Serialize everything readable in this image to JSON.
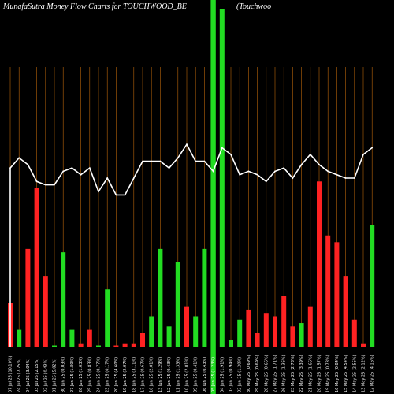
{
  "header": {
    "title_left": "MunafaSutra  Money Flow  Charts for TOUCHWOOD_BE",
    "title_right": "(Touchwoo"
  },
  "chart_data": {
    "type": "bar",
    "title": "MunafaSutra  Money Flow  Charts for TOUCHWOOD_BE",
    "ylim": [
      0,
      100
    ],
    "colors": {
      "up": "#22dd22",
      "down": "#ff2222",
      "grid": "#b8640a",
      "line": "#ffffff",
      "highlight": "#22dd22"
    },
    "highlight_index": 23,
    "categories": [
      "07 Jul 25 (10.10%)",
      "24 Jul 25 (7.75%)",
      "04 Jul 25 (3.04%)",
      "03 Jul 25 (2.15%)",
      "02 Jul 25 (0.43%)",
      "01 Jul 25 (5.02%)",
      "30 Jun 25 (0.03%)",
      "27 Jun 25 (1.80%)",
      "26 Jun 25 (1.03%)",
      "25 Jun 25 (0.83%)",
      "24 Jun 25 (0.77%)",
      "23 Jun 25 (0.17%)",
      "20 Jun 25 (4.60%)",
      "19 Jun 25 (2.07%)",
      "18 Jun 25 (3.11%)",
      "17 Jun 25 (0.67%)",
      "16 Jun 25 (2.01%)",
      "13 Jun 25 (1.29%)",
      "12 Jun 25 (0.43%)",
      "11 Jun 25 (1.33%)",
      "10 Jun 25 (2.01%)",
      "09 Jun 25 (0.41%)",
      "06 Jun 25 (0.43%)",
      "05 Jun 25 (1.23%)",
      "04 Jun 25 (1.91%)",
      "03 Jun 25 (0.94%)",
      "02 Jun 25 (1.20%)",
      "30 May 25 (0.69%)",
      "29 May 25 (0.69%)",
      "28 May 25 (0.66%)",
      "27 May 25 (1.71%)",
      "26 May 25 (1.36%)",
      "23 May 25 (2.73%)",
      "22 May 25 (3.39%)",
      "21 May 25 (1.66%)",
      "20 May 25 (1.57%)",
      "19 May 25 (0.73%)",
      "16 May 25 (0.84%)",
      "15 May 25 (4.54%)",
      "14 May 25 (2.55%)",
      "13 May 25 (2.12%)",
      "12 May 25 (4.16%)"
    ],
    "series": [
      {
        "values": [
          13,
          5,
          29,
          47,
          21,
          0,
          28,
          5,
          1,
          5,
          0,
          17,
          0,
          1,
          1,
          4,
          9,
          29,
          6,
          25,
          12,
          9,
          29,
          4,
          100,
          2,
          8,
          11,
          4,
          10,
          9,
          15,
          6,
          7,
          12,
          49,
          33,
          31,
          21,
          8,
          1,
          36
        ],
        "directions": [
          "down",
          "up",
          "down",
          "down",
          "down",
          "up",
          "up",
          "up",
          "down",
          "down",
          "up",
          "up",
          "down",
          "down",
          "down",
          "down",
          "up",
          "up",
          "up",
          "up",
          "down",
          "up",
          "up",
          "down",
          "up",
          "up",
          "up",
          "down",
          "down",
          "down",
          "down",
          "down",
          "down",
          "up",
          "down",
          "down",
          "down",
          "down",
          "down",
          "down",
          "down",
          "up"
        ]
      },
      {
        "type": "line",
        "values": [
          53,
          56,
          54,
          49,
          48,
          48,
          52,
          53,
          51,
          53,
          46,
          50,
          45,
          45,
          50,
          55,
          55,
          55,
          53,
          56,
          60,
          55,
          55,
          52,
          59,
          57,
          51,
          52,
          51,
          49,
          52,
          53,
          50,
          54,
          57,
          54,
          52,
          51,
          50,
          50,
          57,
          59
        ]
      }
    ]
  }
}
